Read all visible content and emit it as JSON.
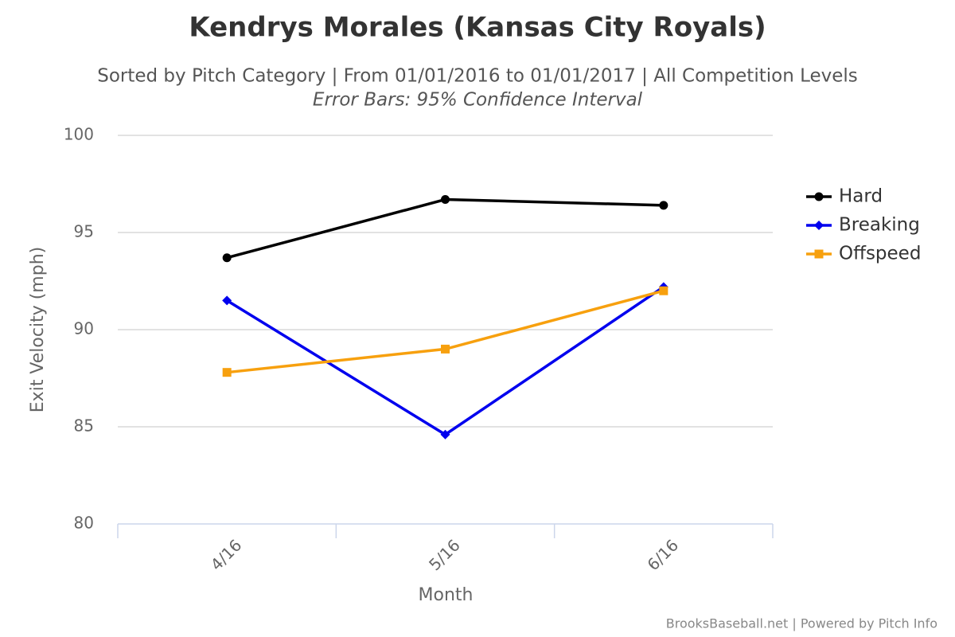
{
  "chart_data": {
    "type": "line",
    "title": "Kendrys Morales (Kansas City Royals)",
    "subtitle": "Sorted by Pitch Category | From 01/01/2016 to 01/01/2017 | All Competition Levels",
    "note": "Error Bars: 95% Confidence Interval",
    "x_label": "Month",
    "y_label": "Exit Velocity (mph)",
    "credits": "BrooksBaseball.net | Powered by Pitch Info",
    "categories": [
      "4/16",
      "5/16",
      "6/16"
    ],
    "series": [
      {
        "name": "Hard",
        "color": "#000000",
        "marker": "circle",
        "values": [
          93.7,
          96.7,
          96.4
        ]
      },
      {
        "name": "Breaking",
        "color": "#0000ee",
        "marker": "diamond",
        "values": [
          91.5,
          84.6,
          92.2
        ]
      },
      {
        "name": "Offspeed",
        "color": "#f7a00e",
        "marker": "square",
        "values": [
          87.8,
          89.0,
          92.0
        ]
      }
    ],
    "ylim": [
      80,
      100
    ],
    "yticks": [
      80,
      85,
      90,
      95,
      100
    ],
    "grid": true,
    "legend": "right"
  }
}
